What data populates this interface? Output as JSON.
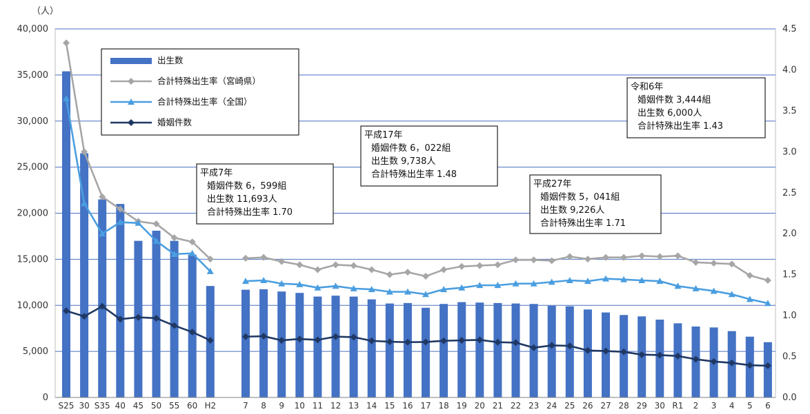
{
  "chart_data": {
    "type": "bar",
    "y_unit_label": "（人）",
    "ylim_left": [
      0,
      40000
    ],
    "ylim_right": [
      0.0,
      4.5
    ],
    "yticks_left": [
      "0",
      "5,000",
      "10,000",
      "15,000",
      "20,000",
      "25,000",
      "30,000",
      "35,000",
      "40,000"
    ],
    "yticks_right": [
      "0.0",
      "0.5",
      "1.0",
      "1.5",
      "2.0",
      "2.5",
      "3.0",
      "3.5",
      "4.0",
      "4.5"
    ],
    "grid": true,
    "legend": [
      {
        "name": "出生数",
        "kind": "bar",
        "color": "#4472c4"
      },
      {
        "name": "合計特殊出生率（宮崎県）",
        "kind": "line",
        "color": "#a6a6a6"
      },
      {
        "name": "合計特殊出生率（全国）",
        "kind": "line",
        "color": "#4a9ee0"
      },
      {
        "name": "婚姻件数",
        "kind": "line",
        "color": "#1f3864"
      }
    ],
    "segments": [
      {
        "categories": [
          "S25",
          "30",
          "S35",
          "40",
          "45",
          "50",
          "55",
          "60",
          "H2"
        ],
        "births": [
          35400,
          26500,
          21500,
          21000,
          17000,
          18100,
          17000,
          15500,
          12100
        ],
        "tfr_miyazaki": [
          4.33,
          3.0,
          2.45,
          2.3,
          2.15,
          2.12,
          1.95,
          1.9,
          1.69
        ],
        "tfr_national": [
          3.65,
          2.37,
          2.0,
          2.14,
          2.13,
          1.91,
          1.75,
          1.76,
          1.54
        ],
        "marriages": [
          9400,
          8800,
          9900,
          8500,
          8700,
          8600,
          7800,
          7100,
          6200
        ]
      },
      {
        "categories": [
          "7",
          "8",
          "9",
          "10",
          "11",
          "12",
          "13",
          "14",
          "15",
          "16",
          "17",
          "18",
          "19",
          "20",
          "21",
          "22",
          "23",
          "24",
          "25",
          "26",
          "27",
          "28",
          "29",
          "30",
          "R1",
          "2",
          "3",
          "4",
          "5",
          "6"
        ],
        "births": [
          11693,
          11750,
          11500,
          11350,
          10950,
          11050,
          10950,
          10650,
          10200,
          10250,
          9738,
          10150,
          10350,
          10300,
          10250,
          10200,
          10150,
          9950,
          9900,
          9550,
          9226,
          8950,
          8800,
          8450,
          8050,
          7700,
          7600,
          7200,
          6600,
          6000
        ],
        "tfr_miyazaki": [
          1.7,
          1.71,
          1.66,
          1.62,
          1.56,
          1.62,
          1.61,
          1.56,
          1.5,
          1.53,
          1.48,
          1.56,
          1.6,
          1.61,
          1.62,
          1.68,
          1.68,
          1.67,
          1.72,
          1.69,
          1.71,
          1.71,
          1.73,
          1.72,
          1.73,
          1.65,
          1.64,
          1.63,
          1.49,
          1.43
        ],
        "tfr_national": [
          1.42,
          1.43,
          1.39,
          1.38,
          1.34,
          1.36,
          1.33,
          1.32,
          1.29,
          1.29,
          1.26,
          1.32,
          1.34,
          1.37,
          1.37,
          1.39,
          1.39,
          1.41,
          1.43,
          1.42,
          1.45,
          1.44,
          1.43,
          1.42,
          1.36,
          1.33,
          1.3,
          1.26,
          1.2,
          1.15
        ],
        "marriages": [
          6599,
          6650,
          6200,
          6350,
          6250,
          6600,
          6550,
          6150,
          6050,
          6000,
          6022,
          6150,
          6200,
          6250,
          6000,
          5950,
          5400,
          5650,
          5600,
          5100,
          5041,
          4950,
          4650,
          4600,
          4500,
          4150,
          3900,
          3750,
          3500,
          3444
        ]
      }
    ],
    "annotations": [
      {
        "lines": [
          "平成7年",
          "婚姻件数  6，599組",
          "出生数  11,693人",
          "合計特殊出生率  1.70"
        ]
      },
      {
        "lines": [
          "平成17年",
          "婚姻件数  6，022組",
          "出生数  9,738人",
          "合計特殊出生率  1.48"
        ]
      },
      {
        "lines": [
          "平成27年",
          "婚姻件数  5，041組",
          "出生数  9,226人",
          "合計特殊出生率  1.71"
        ]
      },
      {
        "lines": [
          "令和6年",
          "婚姻件数  3,444組",
          "出生数  6,000人",
          "合計特殊出生率  1.43"
        ]
      }
    ]
  }
}
